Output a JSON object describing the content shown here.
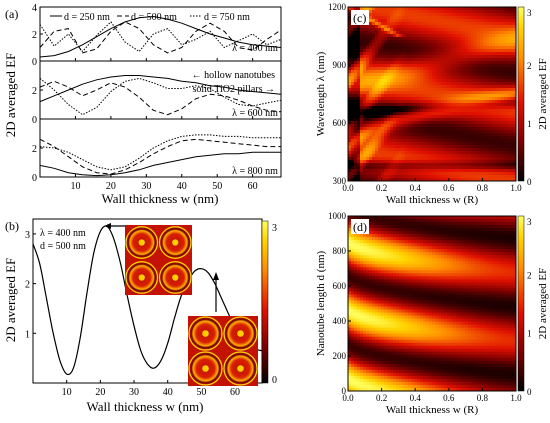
{
  "chart_data": [
    {
      "panel": "(a)",
      "type": "line",
      "xlabel": "Wall thickness w (nm)",
      "ylabel": "2D averaged EF",
      "xlim": [
        0,
        68
      ],
      "x_ticks": [
        "10",
        "20",
        "30",
        "40",
        "50",
        "60"
      ],
      "legend": [
        "d = 250 nm",
        "d = 500 nm",
        "d = 750 nm"
      ],
      "annotations": [
        "← hollow nanotubes",
        "solid TiO2 pillars →"
      ],
      "subpanels": [
        {
          "label": "λ = 400 nm",
          "ylim": [
            0,
            4
          ],
          "y_ticks": [
            "0",
            "2",
            "4"
          ],
          "series": [
            {
              "name": "d = 250 nm",
              "x": [
                0,
                4,
                8,
                12,
                16,
                20,
                24,
                28,
                32,
                36,
                40,
                44,
                48,
                52,
                56,
                60,
                64,
                68
              ],
              "y": [
                0.3,
                0.4,
                0.7,
                1.2,
                1.8,
                2.4,
                2.9,
                3.2,
                3.3,
                3.1,
                2.8,
                2.4,
                2.0,
                1.7,
                1.4,
                1.2,
                1.1,
                1.0
              ]
            },
            {
              "name": "d = 500 nm",
              "x": [
                0,
                4,
                8,
                12,
                16,
                20,
                24,
                28,
                32,
                36,
                40,
                44,
                48,
                52,
                56,
                60,
                64,
                68
              ],
              "y": [
                1.0,
                2.2,
                2.4,
                0.6,
                0.9,
                2.2,
                2.9,
                2.4,
                1.2,
                0.6,
                1.0,
                2.2,
                2.8,
                2.2,
                1.0,
                0.8,
                1.6,
                2.3
              ]
            },
            {
              "name": "d = 750 nm",
              "x": [
                0,
                4,
                8,
                12,
                16,
                20,
                24,
                28,
                32,
                36,
                40,
                44,
                48,
                52,
                56,
                60,
                64,
                68
              ],
              "y": [
                2.7,
                1.1,
                2.0,
                0.7,
                1.9,
                2.9,
                1.4,
                0.7,
                2.0,
                2.4,
                1.2,
                1.6,
                2.2,
                1.0,
                1.5,
                2.0,
                1.2,
                1.6
              ]
            }
          ]
        },
        {
          "label": "λ = 600 nm",
          "ylim": [
            0,
            4
          ],
          "y_ticks": [
            "0",
            "2",
            "4"
          ],
          "series": [
            {
              "name": "d = 250 nm",
              "x": [
                0,
                4,
                8,
                12,
                16,
                20,
                24,
                28,
                32,
                36,
                40,
                44,
                48,
                52,
                56,
                60,
                64,
                68
              ],
              "y": [
                1.2,
                1.6,
                2.0,
                2.4,
                2.7,
                2.9,
                3.0,
                3.0,
                2.9,
                2.8,
                2.6,
                2.5,
                2.3,
                2.2,
                2.0,
                1.9,
                1.8,
                1.7
              ]
            },
            {
              "name": "d = 500 nm",
              "x": [
                0,
                4,
                8,
                12,
                16,
                20,
                24,
                28,
                32,
                36,
                40,
                44,
                48,
                52,
                56,
                60,
                64,
                68
              ],
              "y": [
                2.2,
                2.6,
                2.2,
                1.6,
                2.0,
                2.5,
                2.2,
                1.5,
                0.6,
                0.3,
                0.7,
                1.4,
                1.7,
                1.6,
                1.3,
                0.9,
                0.6,
                0.5
              ]
            },
            {
              "name": "d = 750 nm",
              "x": [
                0,
                4,
                8,
                12,
                16,
                20,
                24,
                28,
                32,
                36,
                40,
                44,
                48,
                52,
                56,
                60,
                64,
                68
              ],
              "y": [
                2.8,
                2.0,
                1.0,
                0.3,
                0.8,
                1.9,
                2.6,
                2.8,
                2.5,
                2.1,
                2.1,
                2.3,
                2.1,
                1.5,
                1.0,
                0.9,
                1.1,
                1.3
              ]
            }
          ]
        },
        {
          "label": "λ = 800 nm",
          "ylim": [
            0,
            4
          ],
          "y_ticks": [
            "0",
            "2",
            "4"
          ],
          "series": [
            {
              "name": "d = 250 nm",
              "x": [
                0,
                4,
                8,
                12,
                16,
                20,
                24,
                28,
                32,
                36,
                40,
                44,
                48,
                52,
                56,
                60,
                64,
                68
              ],
              "y": [
                0.8,
                0.6,
                0.3,
                0.15,
                0.1,
                0.15,
                0.3,
                0.5,
                0.8,
                1.0,
                1.2,
                1.4,
                1.5,
                1.6,
                1.6,
                1.7,
                1.7,
                1.7
              ]
            },
            {
              "name": "d = 500 nm",
              "x": [
                0,
                4,
                8,
                12,
                16,
                20,
                24,
                28,
                32,
                36,
                40,
                44,
                48,
                52,
                56,
                60,
                64,
                68
              ],
              "y": [
                2.6,
                2.1,
                1.4,
                0.7,
                0.3,
                0.2,
                0.5,
                1.0,
                1.6,
                2.1,
                2.5,
                2.6,
                2.5,
                2.4,
                2.3,
                2.2,
                2.1,
                2.1
              ]
            },
            {
              "name": "d = 750 nm",
              "x": [
                0,
                4,
                8,
                12,
                16,
                20,
                24,
                28,
                32,
                36,
                40,
                44,
                48,
                52,
                56,
                60,
                64,
                68
              ],
              "y": [
                2.1,
                2.0,
                1.7,
                1.2,
                0.7,
                0.5,
                0.7,
                1.3,
                2.0,
                2.5,
                2.8,
                2.9,
                2.9,
                2.8,
                2.8,
                2.7,
                2.7,
                2.7
              ]
            }
          ]
        }
      ]
    },
    {
      "panel": "(b)",
      "type": "line",
      "xlabel": "Wall thickness w (nm)",
      "ylabel": "2D averaged EF",
      "xlim": [
        0,
        68
      ],
      "ylim": [
        0,
        3.3
      ],
      "x_ticks": [
        "10",
        "20",
        "30",
        "40",
        "50",
        "60"
      ],
      "y_ticks": [
        "1",
        "2",
        "3"
      ],
      "annotations": [
        "λ = 400 nm",
        "d = 500 nm"
      ],
      "colorbar_ticks": [
        "0",
        "3"
      ],
      "series": [
        {
          "x": [
            0,
            2,
            4,
            6,
            8,
            10,
            12,
            14,
            16,
            18,
            20,
            22,
            24,
            26,
            28,
            30,
            32,
            34,
            36,
            38,
            40,
            42,
            44,
            46,
            48,
            50,
            52,
            54,
            56,
            58,
            60,
            62,
            64,
            66,
            68
          ],
          "y": [
            2.8,
            2.4,
            1.7,
            1.0,
            0.45,
            0.18,
            0.3,
            0.9,
            1.8,
            2.6,
            3.05,
            3.15,
            2.9,
            2.4,
            1.75,
            1.15,
            0.65,
            0.38,
            0.3,
            0.45,
            0.8,
            1.3,
            1.75,
            2.05,
            2.25,
            2.3,
            2.22,
            2.0,
            1.7,
            1.4,
            1.1,
            0.9,
            0.75,
            0.68,
            0.65
          ]
        }
      ]
    },
    {
      "panel": "(c)",
      "type": "heatmap",
      "xlabel": "Wall thickness w (R)",
      "ylabel": "Wavelength λ (nm)",
      "colorbar_label": "2D averaged EF",
      "xlim": [
        0,
        1
      ],
      "ylim": [
        300,
        1200
      ],
      "x_ticks": [
        "0.0",
        "0.2",
        "0.4",
        "0.6",
        "0.8",
        "1.0"
      ],
      "y_ticks": [
        "300",
        "600",
        "900",
        "1200"
      ],
      "colorbar_ticks": [
        "0",
        "1",
        "2",
        "3"
      ]
    },
    {
      "panel": "(d)",
      "type": "heatmap",
      "xlabel": "Wall thickness w (R)",
      "ylabel": "Nanotube length d (nm)",
      "colorbar_label": "2D averaged EF",
      "xlim": [
        0,
        1
      ],
      "ylim": [
        0,
        1000
      ],
      "x_ticks": [
        "0.0",
        "0.2",
        "0.4",
        "0.6",
        "0.8",
        "1.0"
      ],
      "y_ticks": [
        "0",
        "200",
        "400",
        "600",
        "800",
        "1000"
      ],
      "colorbar_ticks": [
        "0",
        "1",
        "2",
        "3"
      ]
    }
  ]
}
